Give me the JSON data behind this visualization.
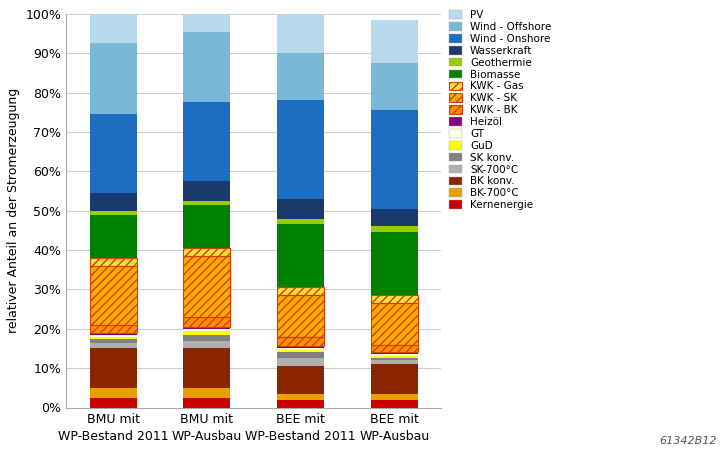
{
  "categories": [
    "BMU mit\nWP-Bestand 2011",
    "BMU mit\nWP-Ausbau",
    "BEE mit\nWP-Bestand 2011",
    "BEE mit\nWP-Ausbau"
  ],
  "series": [
    {
      "label": "Kernenergie",
      "color": "#cc0000",
      "hatch": null,
      "hatch_color": null,
      "values": [
        2.5,
        2.5,
        2.0,
        2.0
      ]
    },
    {
      "label": "BK-700°C",
      "color": "#e8a000",
      "hatch": null,
      "hatch_color": null,
      "values": [
        2.5,
        2.5,
        1.5,
        1.5
      ]
    },
    {
      "label": "BK konv.",
      "color": "#8b2500",
      "hatch": null,
      "hatch_color": null,
      "values": [
        10.0,
        10.0,
        7.0,
        7.5
      ]
    },
    {
      "label": "SK-700°C",
      "color": "#b0b0b0",
      "hatch": null,
      "hatch_color": null,
      "values": [
        1.5,
        2.0,
        2.0,
        1.0
      ]
    },
    {
      "label": "SK konv.",
      "color": "#808080",
      "hatch": null,
      "hatch_color": null,
      "values": [
        1.0,
        1.5,
        1.5,
        0.5
      ]
    },
    {
      "label": "GuD",
      "color": "#ffff00",
      "hatch": null,
      "hatch_color": null,
      "values": [
        0.5,
        1.0,
        0.5,
        0.5
      ]
    },
    {
      "label": "GT",
      "color": "#ffffe0",
      "hatch": null,
      "hatch_color": null,
      "values": [
        0.5,
        0.5,
        0.5,
        0.5
      ]
    },
    {
      "label": "Heizöl",
      "color": "#800080",
      "hatch": null,
      "hatch_color": null,
      "values": [
        0.5,
        0.5,
        0.5,
        0.5
      ]
    },
    {
      "label": "KWK - BK",
      "color": "#ff8c00",
      "hatch": "////",
      "hatch_color": "#cc4400",
      "values": [
        2.0,
        2.5,
        2.5,
        2.0
      ]
    },
    {
      "label": "KWK - SK",
      "color": "#ffaa00",
      "hatch": "////",
      "hatch_color": "#cc4400",
      "values": [
        15.0,
        15.5,
        10.5,
        10.5
      ]
    },
    {
      "label": "KWK - Gas",
      "color": "#ffdd44",
      "hatch": "////",
      "hatch_color": "#cc4400",
      "values": [
        2.0,
        2.0,
        2.0,
        2.0
      ]
    },
    {
      "label": "Biomasse",
      "color": "#008000",
      "hatch": null,
      "hatch_color": null,
      "values": [
        11.0,
        11.0,
        16.0,
        16.0
      ]
    },
    {
      "label": "Geothermie",
      "color": "#9acd00",
      "hatch": null,
      "hatch_color": null,
      "values": [
        1.0,
        1.0,
        1.5,
        1.5
      ]
    },
    {
      "label": "Wasserkraft",
      "color": "#1a3a6b",
      "hatch": null,
      "hatch_color": null,
      "values": [
        4.5,
        5.0,
        5.0,
        4.5
      ]
    },
    {
      "label": "Wind - Onshore",
      "color": "#1b6ec2",
      "hatch": null,
      "hatch_color": null,
      "values": [
        20.0,
        20.0,
        25.0,
        25.0
      ]
    },
    {
      "label": "Wind - Offshore",
      "color": "#7ab8d8",
      "hatch": null,
      "hatch_color": null,
      "values": [
        18.0,
        18.0,
        12.0,
        12.0
      ]
    },
    {
      "label": "PV",
      "color": "#b8d8ec",
      "hatch": null,
      "hatch_color": null,
      "values": [
        7.5,
        4.5,
        10.0,
        11.0
      ]
    }
  ],
  "ylabel": "relativer Anteil an der Stromerzeugung",
  "ylim": [
    0,
    100
  ],
  "yticks": [
    0,
    10,
    20,
    30,
    40,
    50,
    60,
    70,
    80,
    90,
    100
  ],
  "yticklabels": [
    "0%",
    "10%",
    "20%",
    "30%",
    "40%",
    "50%",
    "60%",
    "70%",
    "80%",
    "90%",
    "100%"
  ],
  "background_color": "#ffffff",
  "grid_color": "#cccccc",
  "bar_width": 0.5,
  "caption": "61342B12",
  "figsize": [
    7.28,
    4.5
  ],
  "dpi": 100
}
